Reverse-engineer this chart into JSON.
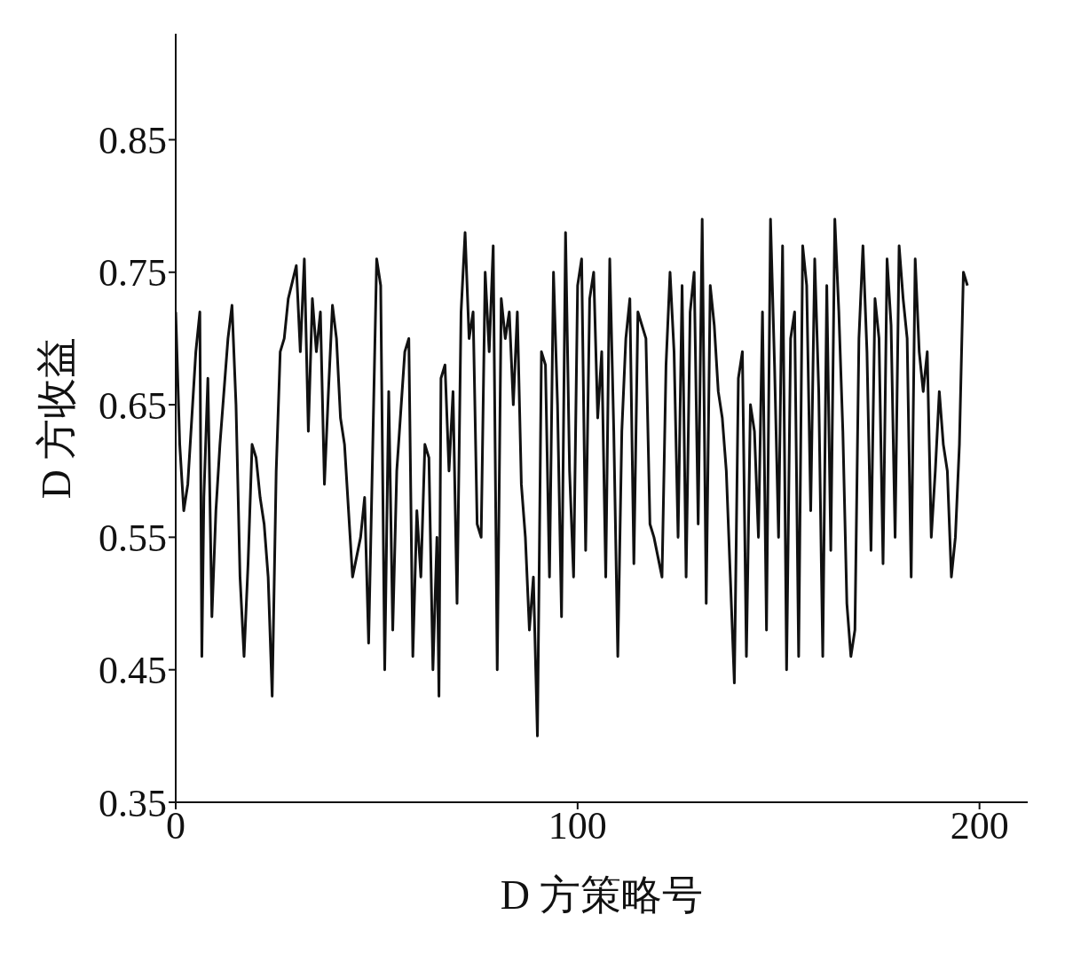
{
  "chart_data": {
    "type": "line",
    "xlabel": "D 方策略号",
    "ylabel": "D 方收益",
    "xlim": [
      0,
      212
    ],
    "xticks": [
      0,
      100,
      200
    ],
    "ylim": [
      0.35,
      0.93
    ],
    "yticks": [
      0.35,
      0.45,
      0.55,
      0.65,
      0.75,
      0.85
    ],
    "grid": false,
    "marker": "none",
    "line_style": "solid",
    "series": [
      {
        "color": "#111111",
        "x": [
          0,
          1,
          2,
          3,
          5,
          6,
          6.5,
          7,
          8,
          9,
          10,
          11,
          13,
          14,
          15,
          16,
          17,
          18,
          19,
          20,
          21,
          22,
          23,
          24,
          25,
          26,
          27,
          28,
          30,
          31,
          32,
          33,
          34,
          35,
          36,
          37,
          38,
          39,
          40,
          41,
          42,
          44,
          46,
          47,
          48,
          50,
          51,
          52,
          53,
          54,
          55,
          57,
          58,
          59,
          60,
          61,
          62,
          63,
          64,
          65,
          65.5,
          66,
          67,
          68,
          69,
          70,
          71,
          72,
          73,
          74,
          75,
          76,
          77,
          78,
          79,
          80,
          81,
          82,
          83,
          84,
          85,
          86,
          87,
          88,
          89,
          90,
          91,
          92,
          93,
          94,
          95,
          96,
          97,
          98,
          99,
          100,
          101,
          102,
          103,
          104,
          105,
          106,
          107,
          108,
          109,
          110,
          111,
          112,
          113,
          114,
          115,
          117,
          118,
          119,
          121,
          122,
          123,
          124,
          125,
          126,
          127,
          128,
          129,
          130,
          131,
          132,
          133,
          134,
          135,
          136,
          137,
          138,
          139,
          140,
          141,
          142,
          143,
          144,
          145,
          146,
          147,
          148,
          149,
          150,
          151,
          152,
          153,
          154,
          155,
          156,
          157,
          158,
          159,
          160,
          161,
          162,
          163,
          164,
          165,
          166,
          167,
          168,
          169,
          170,
          171,
          172,
          173,
          174,
          175,
          176,
          177,
          178,
          179,
          180,
          181,
          182,
          183,
          184,
          185,
          186,
          187,
          188,
          189,
          190,
          191,
          192,
          193,
          194,
          195,
          196,
          197
        ],
        "values": [
          0.72,
          0.62,
          0.57,
          0.59,
          0.69,
          0.72,
          0.46,
          0.58,
          0.67,
          0.49,
          0.57,
          0.62,
          0.7,
          0.725,
          0.65,
          0.52,
          0.46,
          0.53,
          0.62,
          0.61,
          0.58,
          0.56,
          0.52,
          0.43,
          0.6,
          0.69,
          0.7,
          0.73,
          0.755,
          0.69,
          0.76,
          0.63,
          0.73,
          0.69,
          0.72,
          0.59,
          0.66,
          0.725,
          0.7,
          0.64,
          0.62,
          0.52,
          0.55,
          0.58,
          0.47,
          0.76,
          0.74,
          0.45,
          0.66,
          0.48,
          0.6,
          0.69,
          0.7,
          0.46,
          0.57,
          0.52,
          0.62,
          0.61,
          0.45,
          0.55,
          0.43,
          0.67,
          0.68,
          0.6,
          0.66,
          0.5,
          0.72,
          0.78,
          0.7,
          0.72,
          0.56,
          0.55,
          0.75,
          0.69,
          0.77,
          0.45,
          0.73,
          0.7,
          0.72,
          0.65,
          0.72,
          0.59,
          0.55,
          0.48,
          0.52,
          0.4,
          0.69,
          0.68,
          0.52,
          0.75,
          0.65,
          0.49,
          0.78,
          0.6,
          0.52,
          0.74,
          0.76,
          0.54,
          0.73,
          0.75,
          0.64,
          0.69,
          0.52,
          0.76,
          0.63,
          0.46,
          0.63,
          0.7,
          0.73,
          0.53,
          0.72,
          0.7,
          0.56,
          0.55,
          0.52,
          0.68,
          0.75,
          0.69,
          0.55,
          0.74,
          0.52,
          0.72,
          0.75,
          0.56,
          0.79,
          0.5,
          0.74,
          0.71,
          0.66,
          0.64,
          0.6,
          0.52,
          0.44,
          0.67,
          0.69,
          0.46,
          0.65,
          0.63,
          0.55,
          0.72,
          0.48,
          0.79,
          0.68,
          0.55,
          0.77,
          0.45,
          0.7,
          0.72,
          0.46,
          0.77,
          0.74,
          0.57,
          0.76,
          0.66,
          0.46,
          0.74,
          0.54,
          0.79,
          0.72,
          0.63,
          0.5,
          0.46,
          0.48,
          0.7,
          0.77,
          0.69,
          0.54,
          0.73,
          0.7,
          0.53,
          0.76,
          0.71,
          0.55,
          0.77,
          0.73,
          0.7,
          0.52,
          0.76,
          0.69,
          0.66,
          0.69,
          0.55,
          0.6,
          0.66,
          0.62,
          0.6,
          0.52,
          0.55,
          0.62,
          0.75,
          0.74
        ]
      }
    ]
  }
}
